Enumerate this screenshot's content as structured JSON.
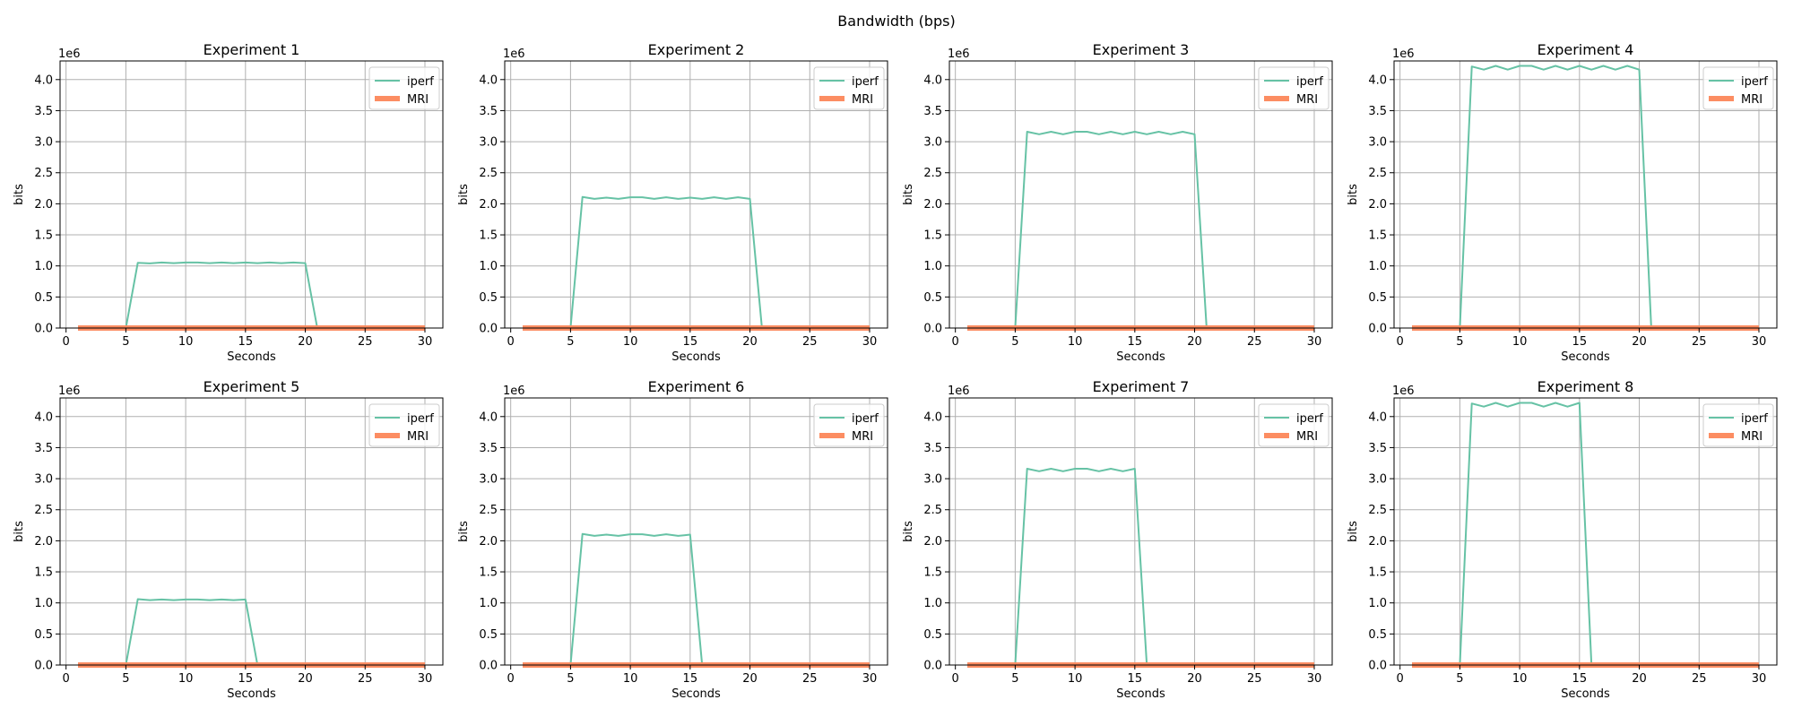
{
  "figure": {
    "suptitle": "Bandwidth (bps)"
  },
  "colors": {
    "iperf": "#66c2a5",
    "mri": "#fc8d62",
    "grid": "#b0b0b0"
  },
  "chart_data": [
    {
      "type": "line",
      "title": "Experiment 1",
      "xlabel": "Seconds",
      "ylabel": "bits",
      "offset_text": "1e6",
      "xlim": [
        -0.5,
        31.5
      ],
      "ylim": [
        0,
        4300000
      ],
      "xticks": [
        0,
        5,
        10,
        15,
        20,
        25,
        30
      ],
      "yticks": [
        0,
        500000,
        1000000,
        1500000,
        2000000,
        2500000,
        3000000,
        3500000,
        4000000
      ],
      "ytick_labels": [
        "0.0",
        "0.5",
        "1.0",
        "1.5",
        "2.0",
        "2.5",
        "3.0",
        "3.5",
        "4.0"
      ],
      "grid": true,
      "legend_position": "top-right",
      "series": [
        {
          "name": "iperf",
          "x": [
            1,
            2,
            3,
            4,
            5,
            6,
            7,
            8,
            9,
            10,
            11,
            12,
            13,
            14,
            15,
            16,
            17,
            18,
            19,
            20,
            21,
            22,
            23,
            24,
            25,
            26,
            27,
            28,
            29,
            30
          ],
          "y": [
            0,
            0,
            0,
            0,
            0,
            1050000,
            1040000,
            1055000,
            1045000,
            1055000,
            1055000,
            1045000,
            1055000,
            1045000,
            1055000,
            1045000,
            1055000,
            1045000,
            1055000,
            1045000,
            0,
            0,
            0,
            0,
            0,
            0,
            0,
            0,
            0,
            0
          ]
        },
        {
          "name": "MRI",
          "x": [
            1,
            30
          ],
          "y": [
            0,
            0
          ]
        }
      ]
    },
    {
      "type": "line",
      "title": "Experiment 2",
      "xlabel": "Seconds",
      "ylabel": "bits",
      "offset_text": "1e6",
      "xlim": [
        -0.5,
        31.5
      ],
      "ylim": [
        0,
        4300000
      ],
      "xticks": [
        0,
        5,
        10,
        15,
        20,
        25,
        30
      ],
      "yticks": [
        0,
        500000,
        1000000,
        1500000,
        2000000,
        2500000,
        3000000,
        3500000,
        4000000
      ],
      "ytick_labels": [
        "0.0",
        "0.5",
        "1.0",
        "1.5",
        "2.0",
        "2.5",
        "3.0",
        "3.5",
        "4.0"
      ],
      "grid": true,
      "legend_position": "top-right",
      "series": [
        {
          "name": "iperf",
          "x": [
            1,
            2,
            3,
            4,
            5,
            6,
            7,
            8,
            9,
            10,
            11,
            12,
            13,
            14,
            15,
            16,
            17,
            18,
            19,
            20,
            21,
            22,
            23,
            24,
            25,
            26,
            27,
            28,
            29,
            30
          ],
          "y": [
            0,
            0,
            0,
            0,
            0,
            2110000,
            2080000,
            2100000,
            2080000,
            2105000,
            2105000,
            2080000,
            2105000,
            2080000,
            2100000,
            2080000,
            2105000,
            2080000,
            2105000,
            2080000,
            0,
            0,
            0,
            0,
            0,
            0,
            0,
            0,
            0,
            0
          ]
        },
        {
          "name": "MRI",
          "x": [
            1,
            30
          ],
          "y": [
            0,
            0
          ]
        }
      ]
    },
    {
      "type": "line",
      "title": "Experiment 3",
      "xlabel": "Seconds",
      "ylabel": "bits",
      "offset_text": "1e6",
      "xlim": [
        -0.5,
        31.5
      ],
      "ylim": [
        0,
        4300000
      ],
      "xticks": [
        0,
        5,
        10,
        15,
        20,
        25,
        30
      ],
      "yticks": [
        0,
        500000,
        1000000,
        1500000,
        2000000,
        2500000,
        3000000,
        3500000,
        4000000
      ],
      "ytick_labels": [
        "0.0",
        "0.5",
        "1.0",
        "1.5",
        "2.0",
        "2.5",
        "3.0",
        "3.5",
        "4.0"
      ],
      "grid": true,
      "legend_position": "top-right",
      "series": [
        {
          "name": "iperf",
          "x": [
            1,
            2,
            3,
            4,
            5,
            6,
            7,
            8,
            9,
            10,
            11,
            12,
            13,
            14,
            15,
            16,
            17,
            18,
            19,
            20,
            21,
            22,
            23,
            24,
            25,
            26,
            27,
            28,
            29,
            30
          ],
          "y": [
            0,
            0,
            0,
            0,
            0,
            3160000,
            3120000,
            3160000,
            3120000,
            3160000,
            3160000,
            3120000,
            3160000,
            3120000,
            3160000,
            3120000,
            3160000,
            3120000,
            3160000,
            3120000,
            0,
            0,
            0,
            0,
            0,
            0,
            0,
            0,
            0,
            0
          ]
        },
        {
          "name": "MRI",
          "x": [
            1,
            30
          ],
          "y": [
            0,
            0
          ]
        }
      ]
    },
    {
      "type": "line",
      "title": "Experiment 4",
      "xlabel": "Seconds",
      "ylabel": "bits",
      "offset_text": "1e6",
      "xlim": [
        -0.5,
        31.5
      ],
      "ylim": [
        0,
        4300000
      ],
      "xticks": [
        0,
        5,
        10,
        15,
        20,
        25,
        30
      ],
      "yticks": [
        0,
        500000,
        1000000,
        1500000,
        2000000,
        2500000,
        3000000,
        3500000,
        4000000
      ],
      "ytick_labels": [
        "0.0",
        "0.5",
        "1.0",
        "1.5",
        "2.0",
        "2.5",
        "3.0",
        "3.5",
        "4.0"
      ],
      "grid": true,
      "legend_position": "top-right",
      "series": [
        {
          "name": "iperf",
          "x": [
            1,
            2,
            3,
            4,
            5,
            6,
            7,
            8,
            9,
            10,
            11,
            12,
            13,
            14,
            15,
            16,
            17,
            18,
            19,
            20,
            21,
            22,
            23,
            24,
            25,
            26,
            27,
            28,
            29,
            30
          ],
          "y": [
            0,
            0,
            0,
            0,
            0,
            4210000,
            4160000,
            4220000,
            4160000,
            4220000,
            4220000,
            4160000,
            4220000,
            4160000,
            4220000,
            4160000,
            4220000,
            4160000,
            4220000,
            4160000,
            0,
            0,
            0,
            0,
            0,
            0,
            0,
            0,
            0,
            0
          ]
        },
        {
          "name": "MRI",
          "x": [
            1,
            30
          ],
          "y": [
            0,
            0
          ]
        }
      ]
    },
    {
      "type": "line",
      "title": "Experiment 5",
      "xlabel": "Seconds",
      "ylabel": "bits",
      "offset_text": "1e6",
      "xlim": [
        -0.5,
        31.5
      ],
      "ylim": [
        0,
        4300000
      ],
      "xticks": [
        0,
        5,
        10,
        15,
        20,
        25,
        30
      ],
      "yticks": [
        0,
        500000,
        1000000,
        1500000,
        2000000,
        2500000,
        3000000,
        3500000,
        4000000
      ],
      "ytick_labels": [
        "0.0",
        "0.5",
        "1.0",
        "1.5",
        "2.0",
        "2.5",
        "3.0",
        "3.5",
        "4.0"
      ],
      "grid": true,
      "legend_position": "top-right",
      "series": [
        {
          "name": "iperf",
          "x": [
            1,
            2,
            3,
            4,
            5,
            6,
            7,
            8,
            9,
            10,
            11,
            12,
            13,
            14,
            15,
            16,
            17,
            18,
            19,
            20,
            21,
            22,
            23,
            24,
            25,
            26,
            27,
            28,
            29,
            30
          ],
          "y": [
            0,
            0,
            0,
            0,
            0,
            1060000,
            1045000,
            1055000,
            1045000,
            1055000,
            1055000,
            1045000,
            1055000,
            1045000,
            1055000,
            0,
            0,
            0,
            0,
            0,
            0,
            0,
            0,
            0,
            0,
            0,
            0,
            0,
            0,
            0
          ]
        },
        {
          "name": "MRI",
          "x": [
            1,
            30
          ],
          "y": [
            0,
            0
          ]
        }
      ]
    },
    {
      "type": "line",
      "title": "Experiment 6",
      "xlabel": "Seconds",
      "ylabel": "bits",
      "offset_text": "1e6",
      "xlim": [
        -0.5,
        31.5
      ],
      "ylim": [
        0,
        4300000
      ],
      "xticks": [
        0,
        5,
        10,
        15,
        20,
        25,
        30
      ],
      "yticks": [
        0,
        500000,
        1000000,
        1500000,
        2000000,
        2500000,
        3000000,
        3500000,
        4000000
      ],
      "ytick_labels": [
        "0.0",
        "0.5",
        "1.0",
        "1.5",
        "2.0",
        "2.5",
        "3.0",
        "3.5",
        "4.0"
      ],
      "grid": true,
      "legend_position": "top-right",
      "series": [
        {
          "name": "iperf",
          "x": [
            1,
            2,
            3,
            4,
            5,
            6,
            7,
            8,
            9,
            10,
            11,
            12,
            13,
            14,
            15,
            16,
            17,
            18,
            19,
            20,
            21,
            22,
            23,
            24,
            25,
            26,
            27,
            28,
            29,
            30
          ],
          "y": [
            0,
            0,
            0,
            0,
            0,
            2110000,
            2080000,
            2100000,
            2080000,
            2105000,
            2105000,
            2080000,
            2105000,
            2080000,
            2100000,
            0,
            0,
            0,
            0,
            0,
            0,
            0,
            0,
            0,
            0,
            0,
            0,
            0,
            0,
            0
          ]
        },
        {
          "name": "MRI",
          "x": [
            1,
            30
          ],
          "y": [
            0,
            0
          ]
        }
      ]
    },
    {
      "type": "line",
      "title": "Experiment 7",
      "xlabel": "Seconds",
      "ylabel": "bits",
      "offset_text": "1e6",
      "xlim": [
        -0.5,
        31.5
      ],
      "ylim": [
        0,
        4300000
      ],
      "xticks": [
        0,
        5,
        10,
        15,
        20,
        25,
        30
      ],
      "yticks": [
        0,
        500000,
        1000000,
        1500000,
        2000000,
        2500000,
        3000000,
        3500000,
        4000000
      ],
      "ytick_labels": [
        "0.0",
        "0.5",
        "1.0",
        "1.5",
        "2.0",
        "2.5",
        "3.0",
        "3.5",
        "4.0"
      ],
      "grid": true,
      "legend_position": "top-right",
      "series": [
        {
          "name": "iperf",
          "x": [
            1,
            2,
            3,
            4,
            5,
            6,
            7,
            8,
            9,
            10,
            11,
            12,
            13,
            14,
            15,
            16,
            17,
            18,
            19,
            20,
            21,
            22,
            23,
            24,
            25,
            26,
            27,
            28,
            29,
            30
          ],
          "y": [
            0,
            0,
            0,
            0,
            0,
            3160000,
            3120000,
            3160000,
            3120000,
            3160000,
            3160000,
            3120000,
            3160000,
            3120000,
            3160000,
            0,
            0,
            0,
            0,
            0,
            0,
            0,
            0,
            0,
            0,
            0,
            0,
            0,
            0,
            0
          ]
        },
        {
          "name": "MRI",
          "x": [
            1,
            30
          ],
          "y": [
            0,
            0
          ]
        }
      ]
    },
    {
      "type": "line",
      "title": "Experiment 8",
      "xlabel": "Seconds",
      "ylabel": "bits",
      "offset_text": "1e6",
      "xlim": [
        -0.5,
        31.5
      ],
      "ylim": [
        0,
        4300000
      ],
      "xticks": [
        0,
        5,
        10,
        15,
        20,
        25,
        30
      ],
      "yticks": [
        0,
        500000,
        1000000,
        1500000,
        2000000,
        2500000,
        3000000,
        3500000,
        4000000
      ],
      "ytick_labels": [
        "0.0",
        "0.5",
        "1.0",
        "1.5",
        "2.0",
        "2.5",
        "3.0",
        "3.5",
        "4.0"
      ],
      "grid": true,
      "legend_position": "top-right",
      "series": [
        {
          "name": "iperf",
          "x": [
            1,
            2,
            3,
            4,
            5,
            6,
            7,
            8,
            9,
            10,
            11,
            12,
            13,
            14,
            15,
            16,
            17,
            18,
            19,
            20,
            21,
            22,
            23,
            24,
            25,
            26,
            27,
            28,
            29,
            30
          ],
          "y": [
            0,
            0,
            0,
            0,
            0,
            4210000,
            4160000,
            4220000,
            4160000,
            4220000,
            4220000,
            4160000,
            4220000,
            4160000,
            4220000,
            0,
            0,
            0,
            0,
            0,
            0,
            0,
            0,
            0,
            0,
            0,
            0,
            0,
            0,
            0
          ]
        },
        {
          "name": "MRI",
          "x": [
            1,
            30
          ],
          "y": [
            0,
            0
          ]
        }
      ]
    }
  ]
}
